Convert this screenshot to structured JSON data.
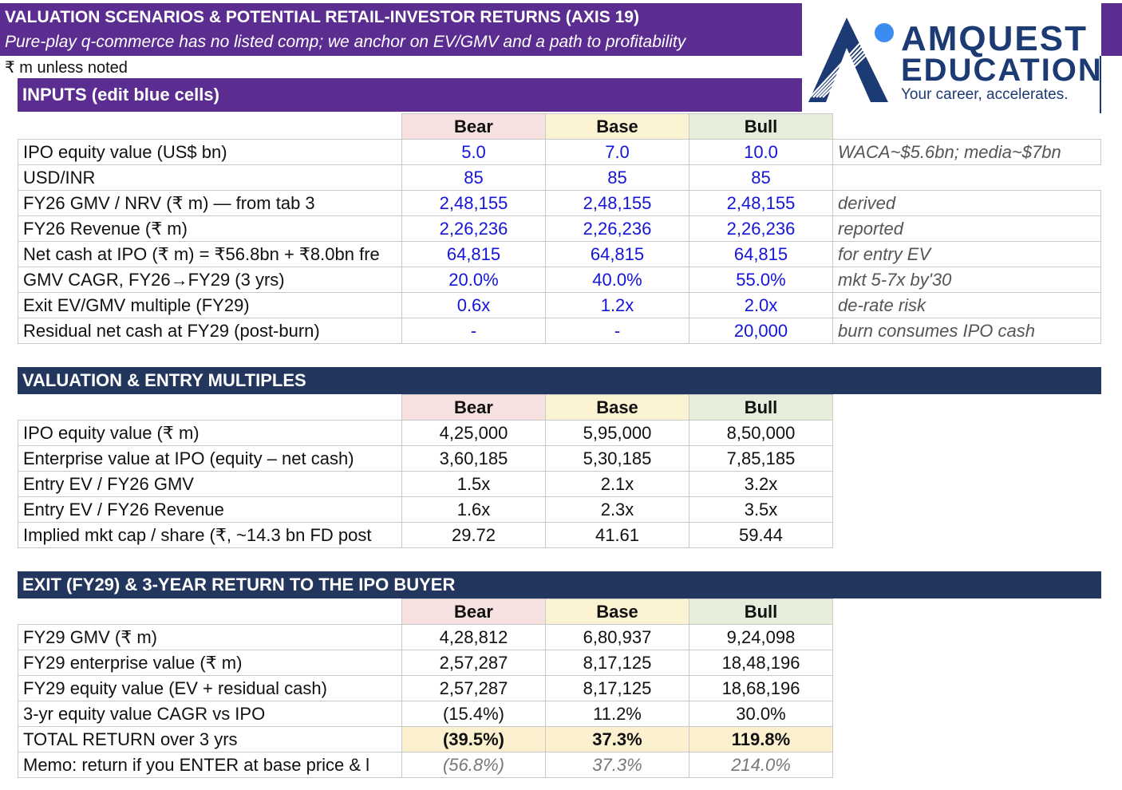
{
  "header": {
    "title": "VALUATION SCENARIOS & POTENTIAL RETAIL-INVESTOR RETURNS (AXIS 19)",
    "subtitle": "Pure-play q-commerce has no listed comp; we anchor on EV/GMV and a path to profitability",
    "units": "₹ m unless noted"
  },
  "logo": {
    "line1": "AMQUEST",
    "line2": "EDUCATION",
    "tagline": "Your career, accelerates.",
    "colors": {
      "navy": "#1c3a73",
      "dot": "#3b8cf0"
    }
  },
  "scenarios": [
    "Bear",
    "Base",
    "Bull"
  ],
  "inputs": {
    "heading": "INPUTS (edit blue cells)",
    "rows": [
      {
        "label": "IPO equity value (US$ bn)",
        "values": [
          "5.0",
          "7.0",
          "10.0"
        ],
        "note": "WACA~$5.6bn; media~$7bn"
      },
      {
        "label": "USD/INR",
        "values": [
          "85",
          "85",
          "85"
        ],
        "note": ""
      },
      {
        "label": "FY26 GMV / NRV (₹ m) — from tab 3",
        "values": [
          "2,48,155",
          "2,48,155",
          "2,48,155"
        ],
        "note": "derived"
      },
      {
        "label": "FY26 Revenue (₹ m)",
        "values": [
          "2,26,236",
          "2,26,236",
          "2,26,236"
        ],
        "note": "reported"
      },
      {
        "label": "Net cash at IPO (₹ m) = ₹56.8bn + ₹8.0bn fre",
        "values": [
          "64,815",
          "64,815",
          "64,815"
        ],
        "note": "for entry EV"
      },
      {
        "label": "GMV CAGR, FY26→FY29 (3 yrs)",
        "values": [
          "20.0%",
          "40.0%",
          "55.0%"
        ],
        "note": "mkt 5-7x by'30"
      },
      {
        "label": "Exit EV/GMV multiple (FY29)",
        "values": [
          "0.6x",
          "1.2x",
          "2.0x"
        ],
        "note": "de-rate risk"
      },
      {
        "label": "Residual net cash at FY29 (post-burn)",
        "values": [
          "-",
          "-",
          "20,000"
        ],
        "note": "burn consumes IPO cash"
      }
    ]
  },
  "valuation": {
    "heading": "VALUATION & ENTRY MULTIPLES",
    "rows": [
      {
        "label": "IPO equity value (₹ m)",
        "values": [
          "4,25,000",
          "5,95,000",
          "8,50,000"
        ]
      },
      {
        "label": "Enterprise value at IPO (equity – net cash)",
        "values": [
          "3,60,185",
          "5,30,185",
          "7,85,185"
        ]
      },
      {
        "label": "Entry EV / FY26 GMV",
        "values": [
          "1.5x",
          "2.1x",
          "3.2x"
        ]
      },
      {
        "label": "Entry EV / FY26 Revenue",
        "values": [
          "1.6x",
          "2.3x",
          "3.5x"
        ]
      },
      {
        "label": "Implied mkt cap / share (₹, ~14.3 bn FD post",
        "values": [
          "29.72",
          "41.61",
          "59.44"
        ]
      }
    ]
  },
  "exit": {
    "heading": "EXIT (FY29) & 3-YEAR RETURN TO THE IPO BUYER",
    "rows": [
      {
        "label": "FY29 GMV (₹ m)",
        "values": [
          "4,28,812",
          "6,80,937",
          "9,24,098"
        ]
      },
      {
        "label": "FY29 enterprise value (₹ m)",
        "values": [
          "2,57,287",
          "8,17,125",
          "18,48,196"
        ]
      },
      {
        "label": "FY29 equity value (EV + residual cash)",
        "values": [
          "2,57,287",
          "8,17,125",
          "18,68,196"
        ]
      },
      {
        "label": "3-yr equity value CAGR vs IPO",
        "values": [
          "(15.4%)",
          "11.2%",
          "30.0%"
        ]
      }
    ],
    "total": {
      "label": "TOTAL RETURN over 3 yrs",
      "values": [
        "(39.5%)",
        "37.3%",
        "119.8%"
      ]
    },
    "memo": {
      "label": "Memo: return if you ENTER at base price & l",
      "values": [
        "(56.8%)",
        "37.3%",
        "214.0%"
      ]
    }
  }
}
